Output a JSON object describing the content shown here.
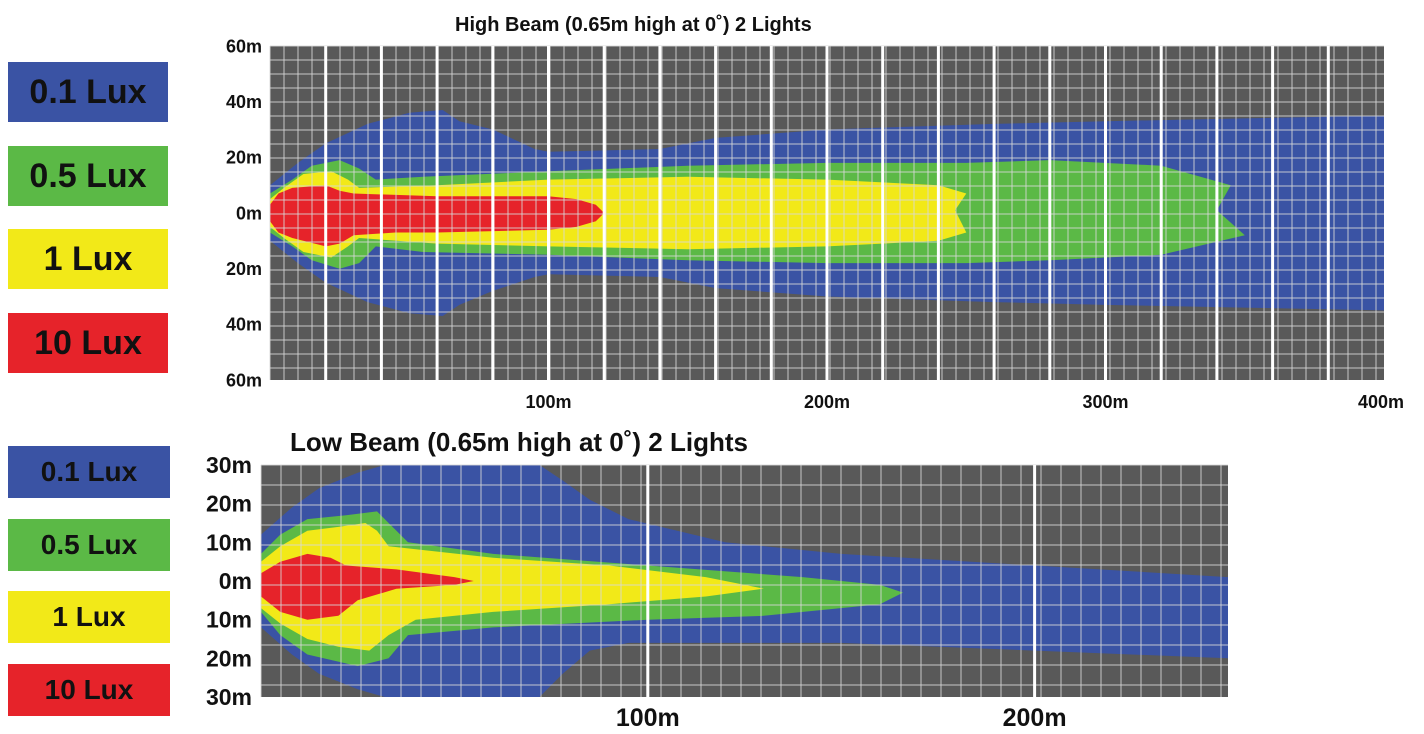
{
  "colors": {
    "background": "#595959",
    "grid_minor": "#d9d9d9",
    "grid_major": "#ffffff",
    "lux_0_1": "#3a53a4",
    "lux_0_5": "#5bb946",
    "lux_1": "#f2e918",
    "lux_10": "#e6232a"
  },
  "chart_data": [
    {
      "type": "area",
      "title": "High Beam (0.65m high at 0˚) 2 Lights",
      "legend": [
        {
          "label": "0.1 Lux",
          "color": "#3a53a4"
        },
        {
          "label": "0.5 Lux",
          "color": "#5bb946"
        },
        {
          "label": "1 Lux",
          "color": "#f2e918"
        },
        {
          "label": "10 Lux",
          "color": "#e6232a"
        }
      ],
      "xlim": [
        0,
        400
      ],
      "ylim": [
        -60,
        60
      ],
      "x_ticks": [
        {
          "value": 100,
          "label": "100m"
        },
        {
          "value": 200,
          "label": "200m"
        },
        {
          "value": 300,
          "label": "300m"
        },
        {
          "value": 400,
          "label": "400m"
        }
      ],
      "y_ticks": [
        {
          "value": 60,
          "label": "60m"
        },
        {
          "value": 40,
          "label": "40m"
        },
        {
          "value": 20,
          "label": "20m"
        },
        {
          "value": 0,
          "label": "0m"
        },
        {
          "value": -20,
          "label": "20m"
        },
        {
          "value": -40,
          "label": "40m"
        },
        {
          "value": -60,
          "label": "60m"
        }
      ],
      "grid": true,
      "series": [
        {
          "name": "0.1 Lux",
          "color": "#3a53a4",
          "points": [
            [
              0,
              10
            ],
            [
              10,
              18
            ],
            [
              20,
              25
            ],
            [
              35,
              32
            ],
            [
              50,
              36
            ],
            [
              62,
              37
            ],
            [
              68,
              33
            ],
            [
              80,
              30
            ],
            [
              95,
              23
            ],
            [
              100,
              22
            ],
            [
              140,
              23
            ],
            [
              160,
              27
            ],
            [
              200,
              30
            ],
            [
              260,
              32
            ],
            [
              300,
              33
            ],
            [
              350,
              34
            ],
            [
              400,
              35
            ],
            [
              400,
              -35
            ],
            [
              350,
              -34
            ],
            [
              300,
              -33
            ],
            [
              260,
              -32
            ],
            [
              200,
              -30
            ],
            [
              160,
              -27
            ],
            [
              140,
              -23
            ],
            [
              100,
              -22
            ],
            [
              95,
              -23
            ],
            [
              80,
              -28
            ],
            [
              68,
              -33
            ],
            [
              62,
              -37
            ],
            [
              50,
              -36
            ],
            [
              35,
              -32
            ],
            [
              20,
              -25
            ],
            [
              10,
              -18
            ],
            [
              0,
              -10
            ]
          ]
        },
        {
          "name": "0.5 Lux",
          "color": "#5bb946",
          "points": [
            [
              0,
              7
            ],
            [
              8,
              12
            ],
            [
              15,
              17
            ],
            [
              25,
              19
            ],
            [
              32,
              16
            ],
            [
              38,
              12
            ],
            [
              55,
              13
            ],
            [
              100,
              15
            ],
            [
              150,
              17
            ],
            [
              200,
              18
            ],
            [
              250,
              18
            ],
            [
              280,
              19
            ],
            [
              320,
              17
            ],
            [
              345,
              10
            ],
            [
              340,
              1
            ],
            [
              350,
              -8
            ],
            [
              320,
              -15
            ],
            [
              280,
              -17
            ],
            [
              250,
              -18
            ],
            [
              200,
              -18
            ],
            [
              150,
              -17
            ],
            [
              100,
              -15
            ],
            [
              55,
              -14
            ],
            [
              38,
              -12
            ],
            [
              32,
              -18
            ],
            [
              25,
              -20
            ],
            [
              15,
              -17
            ],
            [
              8,
              -12
            ],
            [
              0,
              -7
            ]
          ]
        },
        {
          "name": "1 Lux",
          "color": "#f2e918",
          "points": [
            [
              0,
              5
            ],
            [
              5,
              9
            ],
            [
              12,
              14
            ],
            [
              22,
              15
            ],
            [
              28,
              12
            ],
            [
              32,
              9
            ],
            [
              60,
              10
            ],
            [
              100,
              12
            ],
            [
              150,
              13
            ],
            [
              200,
              12
            ],
            [
              240,
              10
            ],
            [
              250,
              7
            ],
            [
              246,
              1
            ],
            [
              250,
              -7
            ],
            [
              240,
              -10
            ],
            [
              200,
              -12
            ],
            [
              150,
              -13
            ],
            [
              100,
              -12
            ],
            [
              60,
              -11
            ],
            [
              32,
              -9
            ],
            [
              28,
              -12
            ],
            [
              22,
              -16
            ],
            [
              12,
              -14
            ],
            [
              5,
              -9
            ],
            [
              0,
              -5
            ]
          ]
        },
        {
          "name": "10 Lux",
          "color": "#e6232a",
          "points": [
            [
              0,
              3
            ],
            [
              3,
              7
            ],
            [
              8,
              9
            ],
            [
              20,
              10
            ],
            [
              25,
              8
            ],
            [
              30,
              7
            ],
            [
              60,
              6
            ],
            [
              100,
              6
            ],
            [
              110,
              5
            ],
            [
              117,
              3
            ],
            [
              120,
              0
            ],
            [
              117,
              -3
            ],
            [
              110,
              -5
            ],
            [
              100,
              -6
            ],
            [
              60,
              -7
            ],
            [
              45,
              -7
            ],
            [
              30,
              -8
            ],
            [
              25,
              -11
            ],
            [
              20,
              -12
            ],
            [
              8,
              -9
            ],
            [
              3,
              -7
            ],
            [
              0,
              -3
            ]
          ]
        }
      ]
    },
    {
      "type": "area",
      "title": "Low Beam (0.65m high at 0˚) 2 Lights",
      "legend": [
        {
          "label": "0.1 Lux",
          "color": "#3a53a4"
        },
        {
          "label": "0.5 Lux",
          "color": "#5bb946"
        },
        {
          "label": "1 Lux",
          "color": "#f2e918"
        },
        {
          "label": "10 Lux",
          "color": "#e6232a"
        }
      ],
      "xlim": [
        0,
        250
      ],
      "ylim": [
        -30,
        30
      ],
      "x_ticks": [
        {
          "value": 100,
          "label": "100m"
        },
        {
          "value": 200,
          "label": "200m"
        }
      ],
      "y_ticks": [
        {
          "value": 30,
          "label": "30m"
        },
        {
          "value": 20,
          "label": "20m"
        },
        {
          "value": 10,
          "label": "10m"
        },
        {
          "value": 0,
          "label": "0m"
        },
        {
          "value": -10,
          "label": "10m"
        },
        {
          "value": -20,
          "label": "20m"
        },
        {
          "value": -30,
          "label": "30m"
        }
      ],
      "grid": true,
      "series": [
        {
          "name": "0.1 Lux",
          "color": "#3a53a4",
          "points": [
            [
              0,
              12
            ],
            [
              8,
              19
            ],
            [
              15,
              24
            ],
            [
              25,
              28
            ],
            [
              32,
              30
            ],
            [
              72,
              30
            ],
            [
              78,
              26
            ],
            [
              85,
              21
            ],
            [
              95,
              16
            ],
            [
              120,
              10
            ],
            [
              150,
              7
            ],
            [
              200,
              4
            ],
            [
              250,
              1
            ],
            [
              250,
              -20
            ],
            [
              200,
              -18
            ],
            [
              150,
              -16
            ],
            [
              120,
              -16
            ],
            [
              95,
              -16
            ],
            [
              85,
              -18
            ],
            [
              78,
              -24
            ],
            [
              72,
              -30
            ],
            [
              32,
              -30
            ],
            [
              25,
              -28
            ],
            [
              15,
              -24
            ],
            [
              8,
              -19
            ],
            [
              0,
              -12
            ]
          ]
        },
        {
          "name": "0.5 Lux",
          "color": "#5bb946",
          "points": [
            [
              0,
              7
            ],
            [
              5,
              12
            ],
            [
              12,
              16
            ],
            [
              22,
              17
            ],
            [
              30,
              18
            ],
            [
              33,
              15
            ],
            [
              38,
              10
            ],
            [
              60,
              7
            ],
            [
              100,
              4
            ],
            [
              140,
              1
            ],
            [
              160,
              -1
            ],
            [
              166,
              -3
            ],
            [
              160,
              -6
            ],
            [
              130,
              -9
            ],
            [
              100,
              -10
            ],
            [
              60,
              -12
            ],
            [
              38,
              -14
            ],
            [
              33,
              -20
            ],
            [
              25,
              -22
            ],
            [
              12,
              -19
            ],
            [
              5,
              -14
            ],
            [
              0,
              -8
            ]
          ]
        },
        {
          "name": "1 Lux",
          "color": "#f2e918",
          "points": [
            [
              0,
              5
            ],
            [
              5,
              9
            ],
            [
              12,
              13
            ],
            [
              20,
              14
            ],
            [
              27,
              15
            ],
            [
              30,
              13
            ],
            [
              33,
              9
            ],
            [
              60,
              6
            ],
            [
              90,
              4
            ],
            [
              115,
              1
            ],
            [
              130,
              -2
            ],
            [
              115,
              -4
            ],
            [
              90,
              -6
            ],
            [
              60,
              -8
            ],
            [
              40,
              -10
            ],
            [
              33,
              -14
            ],
            [
              28,
              -18
            ],
            [
              20,
              -17
            ],
            [
              12,
              -15
            ],
            [
              5,
              -11
            ],
            [
              0,
              -7
            ]
          ]
        },
        {
          "name": "10 Lux",
          "color": "#e6232a",
          "points": [
            [
              0,
              2
            ],
            [
              5,
              5
            ],
            [
              12,
              7
            ],
            [
              18,
              6
            ],
            [
              22,
              4
            ],
            [
              35,
              3
            ],
            [
              50,
              1
            ],
            [
              55,
              0
            ],
            [
              50,
              -1
            ],
            [
              35,
              -2
            ],
            [
              25,
              -5
            ],
            [
              20,
              -9
            ],
            [
              12,
              -10
            ],
            [
              5,
              -8
            ],
            [
              0,
              -4
            ]
          ]
        }
      ]
    }
  ]
}
